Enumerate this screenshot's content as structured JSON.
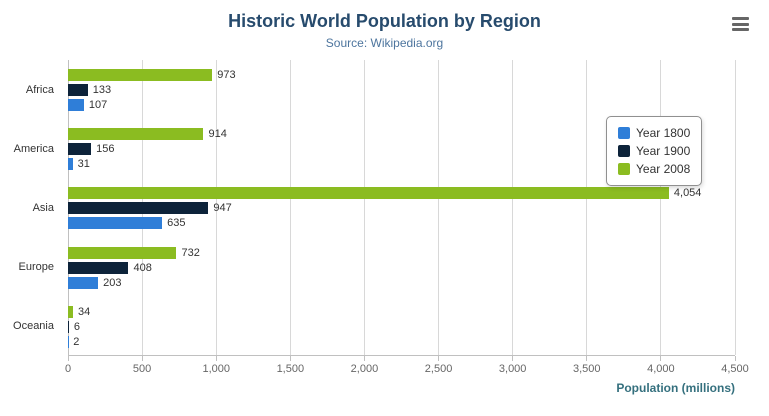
{
  "chart_data": {
    "type": "bar",
    "orientation": "horizontal",
    "title": "Historic World Population by Region",
    "subtitle": "Source: Wikipedia.org",
    "categories": [
      "Africa",
      "America",
      "Asia",
      "Europe",
      "Oceania"
    ],
    "series": [
      {
        "name": "Year 1800",
        "color": "#2f7ed8",
        "values": [
          107,
          31,
          635,
          203,
          2
        ]
      },
      {
        "name": "Year 1900",
        "color": "#0d233a",
        "values": [
          133,
          156,
          947,
          408,
          6
        ]
      },
      {
        "name": "Year 2008",
        "color": "#8bbc21",
        "values": [
          973,
          914,
          4054,
          732,
          34
        ]
      }
    ],
    "series_display_order_top_to_bottom": [
      "Year 2008",
      "Year 1900",
      "Year 1800"
    ],
    "xlabel": "Population (millions)",
    "ylabel": "",
    "xlim": [
      0,
      4500
    ],
    "x_ticks": [
      "0",
      "500",
      "1,000",
      "1,500",
      "2,000",
      "2,500",
      "3,000",
      "3,500",
      "4,000",
      "4,500"
    ],
    "grid": true,
    "data_labels": true,
    "legend_position": "right"
  },
  "icons": {
    "menu": "hamburger-menu-icon"
  },
  "colors": {
    "title": "#274b6d",
    "subtitle": "#4d759e",
    "axis_title": "#35707e",
    "gridline": "#d8d8d8",
    "axis_line": "#c0c0c0",
    "legend_border": "#909090",
    "tick_label": "#666666",
    "data_label": "#333333"
  }
}
